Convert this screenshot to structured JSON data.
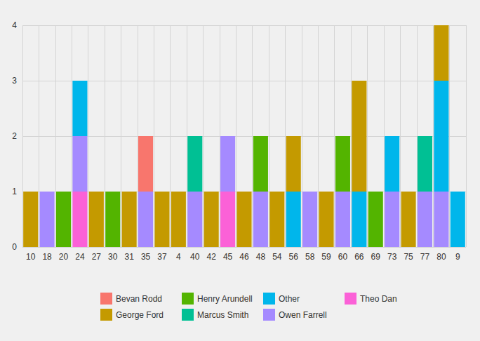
{
  "chart_data": {
    "type": "bar",
    "stacked": true,
    "grid": true,
    "legend": "bottom",
    "categories": [
      "10",
      "18",
      "20",
      "24",
      "27",
      "30",
      "31",
      "35",
      "37",
      "4",
      "40",
      "42",
      "45",
      "46",
      "48",
      "54",
      "56",
      "58",
      "59",
      "60",
      "66",
      "69",
      "73",
      "75",
      "77",
      "80",
      "9"
    ],
    "ylim": [
      0,
      4
    ],
    "yticks": [
      0,
      1,
      2,
      3,
      4
    ],
    "series": [
      {
        "name": "Bevan Rodd",
        "color": "#F8766D",
        "values": [
          0,
          0,
          0,
          0,
          0,
          0,
          0,
          1,
          0,
          0,
          0,
          0,
          0,
          0,
          0,
          0,
          0,
          0,
          0,
          0,
          0,
          0,
          0,
          0,
          0,
          0,
          0
        ]
      },
      {
        "name": "George Ford",
        "color": "#C49A00",
        "values": [
          1,
          0,
          0,
          0,
          1,
          0,
          1,
          0,
          1,
          1,
          0,
          1,
          0,
          1,
          0,
          1,
          1,
          0,
          1,
          0,
          2,
          0,
          0,
          1,
          0,
          1,
          0
        ]
      },
      {
        "name": "Henry Arundell",
        "color": "#53B400",
        "values": [
          0,
          0,
          1,
          0,
          0,
          1,
          0,
          0,
          0,
          0,
          0,
          0,
          0,
          0,
          1,
          0,
          0,
          0,
          0,
          1,
          0,
          1,
          0,
          0,
          0,
          0,
          0
        ]
      },
      {
        "name": "Marcus Smith",
        "color": "#00C094",
        "values": [
          0,
          0,
          0,
          0,
          0,
          0,
          0,
          0,
          0,
          0,
          1,
          0,
          0,
          0,
          0,
          0,
          0,
          0,
          0,
          0,
          0,
          0,
          0,
          0,
          1,
          0,
          0
        ]
      },
      {
        "name": "Other",
        "color": "#00B6EB",
        "values": [
          0,
          0,
          0,
          1,
          0,
          0,
          0,
          0,
          0,
          0,
          0,
          0,
          0,
          0,
          0,
          0,
          1,
          0,
          0,
          0,
          1,
          0,
          1,
          0,
          0,
          2,
          1
        ]
      },
      {
        "name": "Owen Farrell",
        "color": "#A58AFF",
        "values": [
          0,
          1,
          0,
          1,
          0,
          0,
          0,
          1,
          0,
          0,
          1,
          0,
          1,
          0,
          1,
          0,
          0,
          1,
          0,
          1,
          0,
          0,
          1,
          0,
          1,
          1,
          0
        ]
      },
      {
        "name": "Theo Dan",
        "color": "#FB61D7",
        "values": [
          0,
          0,
          0,
          1,
          0,
          0,
          0,
          0,
          0,
          0,
          0,
          0,
          1,
          0,
          0,
          0,
          0,
          0,
          0,
          0,
          0,
          0,
          0,
          0,
          0,
          0,
          0
        ]
      }
    ]
  }
}
